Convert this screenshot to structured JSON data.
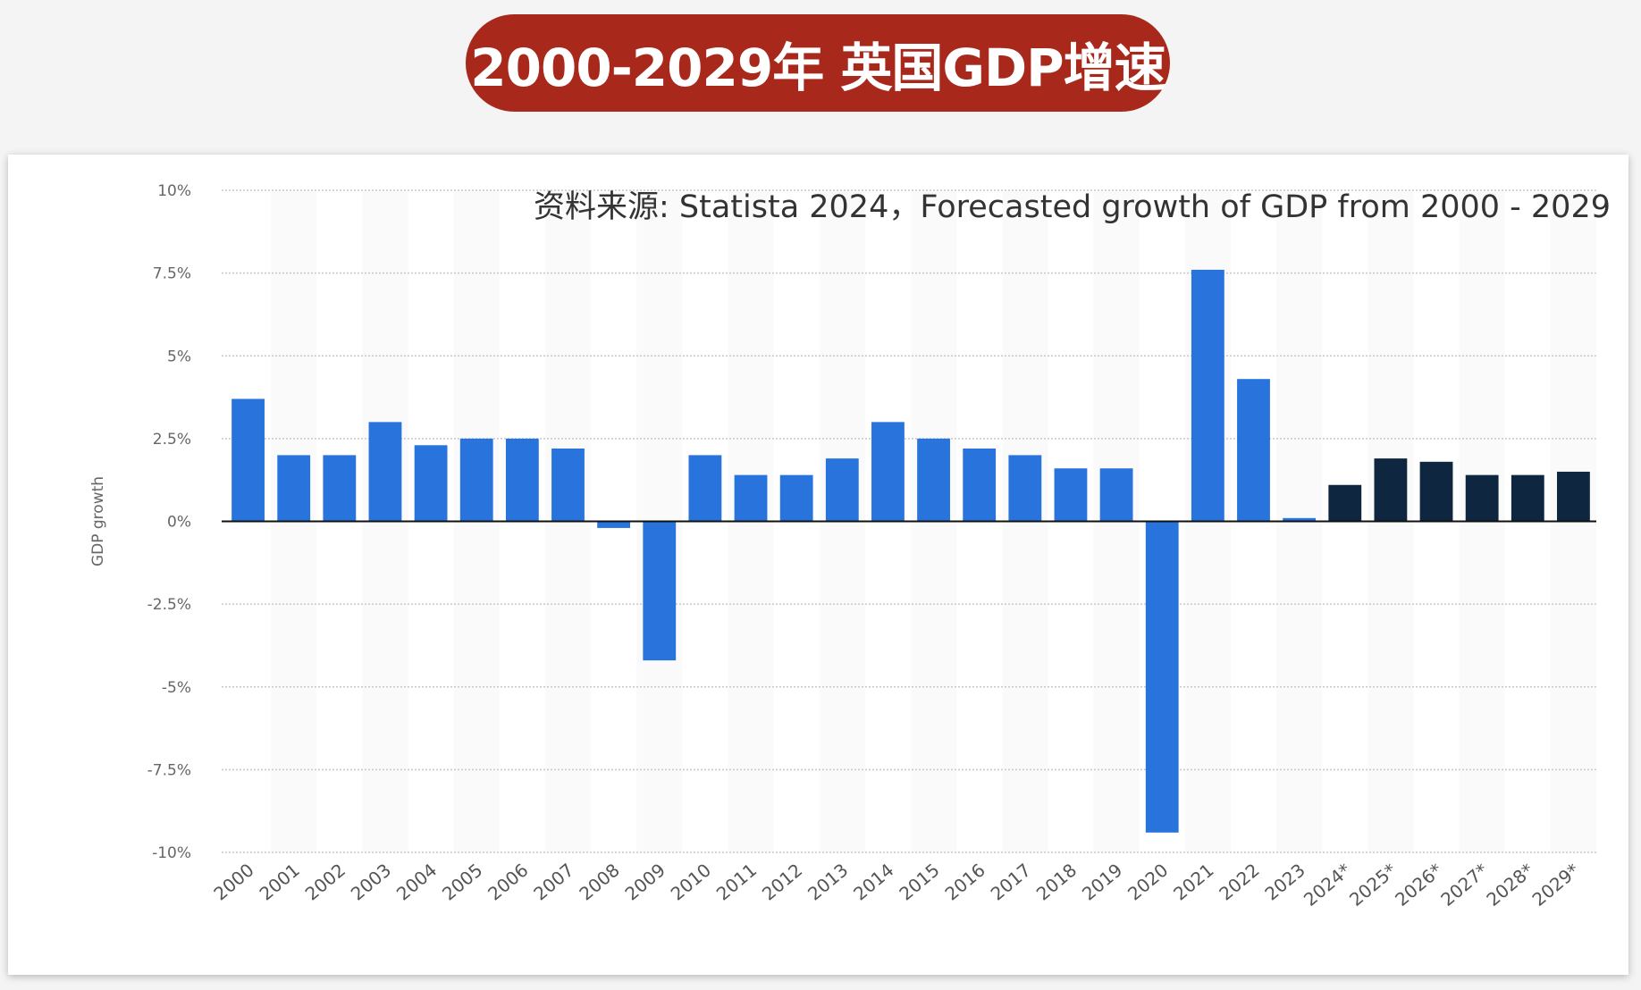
{
  "header": {
    "title": "2000-2029年 英国GDP增速"
  },
  "source": "资料来源: Statista 2024，Forecasted growth of GDP from 2000 - 2029",
  "colors": {
    "title_bg": "#a8291c",
    "actual": "#2874dc",
    "forecast": "#0f2640"
  },
  "chart_data": {
    "type": "bar",
    "title": "",
    "xlabel": "",
    "ylabel": "GDP growth",
    "ylim": [
      -10,
      10
    ],
    "yticks": [
      10,
      7.5,
      5,
      2.5,
      0,
      -2.5,
      -5,
      -7.5,
      -10
    ],
    "ytick_labels": [
      "10%",
      "7.5%",
      "5%",
      "2.5%",
      "0%",
      "-2.5%",
      "-5%",
      "-7.5%",
      "-10%"
    ],
    "grid": true,
    "categories": [
      "2000",
      "2001",
      "2002",
      "2003",
      "2004",
      "2005",
      "2006",
      "2007",
      "2008",
      "2009",
      "2010",
      "2011",
      "2012",
      "2013",
      "2014",
      "2015",
      "2016",
      "2017",
      "2018",
      "2019",
      "2020",
      "2021",
      "2022",
      "2023",
      "2024*",
      "2025*",
      "2026*",
      "2027*",
      "2028*",
      "2029*"
    ],
    "values": [
      3.7,
      2.0,
      2.0,
      3.0,
      2.3,
      2.5,
      2.5,
      2.2,
      -0.2,
      -4.2,
      2.0,
      1.4,
      1.4,
      1.9,
      3.0,
      2.5,
      2.2,
      2.0,
      1.6,
      1.6,
      -9.4,
      7.6,
      4.3,
      0.1,
      1.1,
      1.9,
      1.8,
      1.4,
      1.4,
      1.5
    ],
    "forecast": [
      false,
      false,
      false,
      false,
      false,
      false,
      false,
      false,
      false,
      false,
      false,
      false,
      false,
      false,
      false,
      false,
      false,
      false,
      false,
      false,
      false,
      false,
      false,
      false,
      true,
      true,
      true,
      true,
      true,
      true
    ]
  }
}
